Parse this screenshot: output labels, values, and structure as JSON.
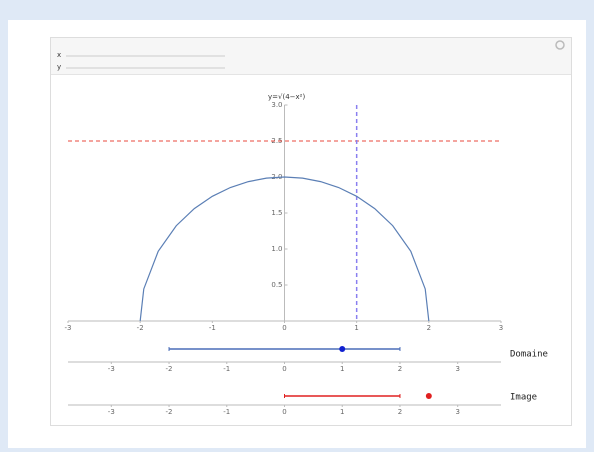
{
  "controls": {
    "labels": [
      "x",
      "y"
    ]
  },
  "chart_data": {
    "type": "line",
    "title": "y=√(4−x²)",
    "x": [
      -2,
      -1.95,
      -1.75,
      -1.5,
      -1.25,
      -1,
      -0.75,
      -0.5,
      -0.25,
      0,
      0.25,
      0.5,
      0.75,
      1,
      1.25,
      1.5,
      1.75,
      1.95,
      2
    ],
    "series": [
      {
        "color": "#5b7fb5",
        "values": [
          0,
          0.445,
          0.968,
          1.323,
          1.561,
          1.732,
          1.854,
          1.936,
          1.984,
          2,
          1.984,
          1.936,
          1.854,
          1.732,
          1.561,
          1.323,
          0.968,
          0.445,
          0
        ]
      }
    ],
    "xlim": [
      -3,
      3
    ],
    "ylim": [
      0,
      3
    ],
    "xticks": [
      -3,
      -2,
      -1,
      0,
      1,
      2,
      3
    ],
    "yticks": [
      0.5,
      {
        "value": 1,
        "label": "1.0"
      },
      1.5,
      {
        "value": 2,
        "label": "2.0"
      },
      2.5,
      {
        "value": 3,
        "label": "3.0"
      }
    ],
    "hline": {
      "value": 2.5,
      "color": "#e8483c"
    },
    "vline": {
      "value": 1,
      "color": "#8a7ff0"
    }
  },
  "number_lines": [
    {
      "name": "Domaine",
      "interval": [
        -2,
        2
      ],
      "point": 1,
      "color": "#4a6db8",
      "point_color": "#1020d0",
      "xlim": [
        -3.75,
        3.75
      ],
      "xticks": [
        -3,
        -2,
        -1,
        0,
        1,
        2,
        3
      ]
    },
    {
      "name": "Image",
      "interval": [
        0,
        2
      ],
      "point": 2.5,
      "color": "#e02020",
      "point_color": "#e02020",
      "xlim": [
        -3.75,
        3.75
      ],
      "xticks": [
        -3,
        -2,
        -1,
        0,
        1,
        2,
        3
      ]
    }
  ]
}
